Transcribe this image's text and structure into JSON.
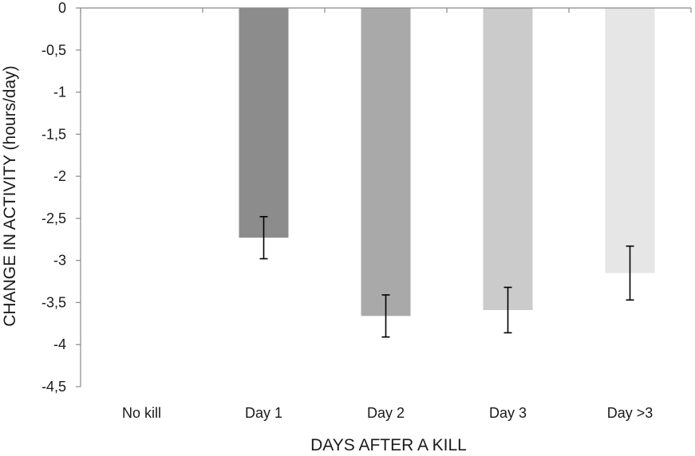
{
  "chart_data": {
    "type": "bar",
    "xlabel": "DAYS AFTER A KILL",
    "ylabel": "CHANGE IN ACTIVITY (hours/day)",
    "categories": [
      "No kill",
      "Day 1",
      "Day 2",
      "Day 3",
      "Day >3"
    ],
    "values": [
      0,
      -2.73,
      -3.66,
      -3.59,
      -3.15
    ],
    "error_bars": [
      0,
      0.25,
      0.25,
      0.27,
      0.32
    ],
    "bar_colors": [
      "#ffffff",
      "#8c8c8c",
      "#a9a9a9",
      "#cbcbcb",
      "#e6e6e6"
    ],
    "ylim": [
      -4.5,
      0
    ],
    "yticks": [
      0,
      -0.5,
      -1,
      -1.5,
      -2,
      -2.5,
      -3,
      -3.5,
      -4,
      -4.5
    ],
    "ytick_labels": [
      "0",
      "-0,5",
      "-1",
      "-1,5",
      "-2",
      "-2,5",
      "-3",
      "-3,5",
      "-4",
      "-4,5"
    ],
    "grid": false,
    "legend": "none"
  }
}
